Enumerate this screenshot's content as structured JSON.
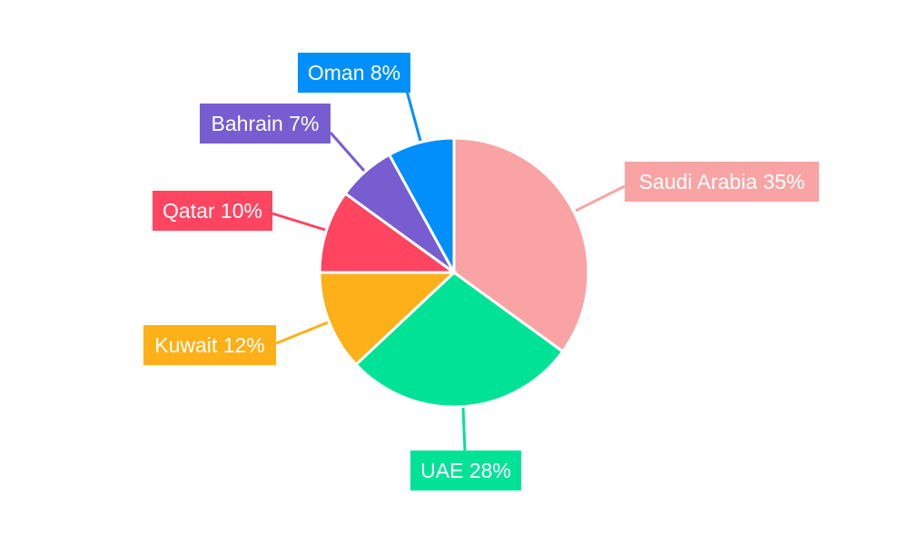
{
  "chart_data": {
    "type": "pie",
    "title": "",
    "categories": [
      "Saudi Arabia",
      "UAE",
      "Kuwait",
      "Qatar",
      "Bahrain",
      "Oman"
    ],
    "values": [
      35,
      28,
      12,
      10,
      7,
      8
    ],
    "unit": "%",
    "colors": [
      "#F9A3A4",
      "#00E396",
      "#FEB019",
      "#FF4560",
      "#775DD0",
      "#008FFB"
    ],
    "labels": [
      "Saudi Arabia 35%",
      "UAE 28%",
      "Kuwait 12%",
      "Qatar 10%",
      "Bahrain 7%",
      "Oman 8%"
    ],
    "start_angle": "top",
    "direction": "clockwise",
    "legend": "none"
  }
}
